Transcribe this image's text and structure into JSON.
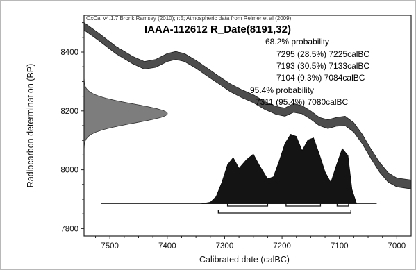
{
  "chart_data": {
    "type": "area",
    "title": "IAAA-112612 R_Date(8191,32)",
    "credit": "OxCal v4.1.7 Bronk Ramsey (2010); r:5; Atmospheric data from Reimer et al (2009);",
    "xlabel": "Calibrated date (calBC)",
    "ylabel": "Radiocarbon determination (BP)",
    "xlim": [
      7545,
      6975
    ],
    "ylim": [
      7775,
      8525
    ],
    "x_ticks": [
      7500,
      7400,
      7300,
      7200,
      7100,
      7000
    ],
    "y_ticks": [
      7800,
      8000,
      8200,
      8400
    ],
    "annotations": [
      "68.2% probability",
      "7295 (28.5%) 7225calBC",
      "7193 (30.5%) 7133calBC",
      "7104 (9.3%) 7084calBC",
      "95.4% probability",
      "7311 (95.4%) 7080calBC"
    ],
    "radiocarbon_date": {
      "mean": 8191,
      "sd": 32
    },
    "calibration_curve": [
      [
        7545,
        8500,
        8475
      ],
      [
        7520,
        8465,
        8440
      ],
      [
        7490,
        8420,
        8395
      ],
      [
        7460,
        8385,
        8360
      ],
      [
        7440,
        8368,
        8342
      ],
      [
        7420,
        8375,
        8348
      ],
      [
        7400,
        8395,
        8368
      ],
      [
        7385,
        8402,
        8375
      ],
      [
        7370,
        8395,
        8368
      ],
      [
        7350,
        8372,
        8345
      ],
      [
        7330,
        8345,
        8318
      ],
      [
        7310,
        8318,
        8292
      ],
      [
        7290,
        8292,
        8265
      ],
      [
        7270,
        8272,
        8245
      ],
      [
        7250,
        8255,
        8228
      ],
      [
        7230,
        8232,
        8205
      ],
      [
        7210,
        8215,
        8188
      ],
      [
        7195,
        8210,
        8182
      ],
      [
        7180,
        8225,
        8195
      ],
      [
        7165,
        8218,
        8190
      ],
      [
        7150,
        8200,
        8172
      ],
      [
        7135,
        8178,
        8150
      ],
      [
        7120,
        8170,
        8140
      ],
      [
        7105,
        8178,
        8148
      ],
      [
        7090,
        8182,
        8150
      ],
      [
        7075,
        8160,
        8128
      ],
      [
        7060,
        8120,
        8088
      ],
      [
        7045,
        8070,
        8038
      ],
      [
        7030,
        8025,
        7992
      ],
      [
        7015,
        7990,
        7958
      ],
      [
        7000,
        7972,
        7942
      ],
      [
        6975,
        7965,
        7935
      ]
    ],
    "posterior": [
      [
        7340,
        0.0
      ],
      [
        7325,
        0.02
      ],
      [
        7315,
        0.1
      ],
      [
        7305,
        0.3
      ],
      [
        7295,
        0.55
      ],
      [
        7285,
        0.65
      ],
      [
        7275,
        0.5
      ],
      [
        7262,
        0.62
      ],
      [
        7250,
        0.7
      ],
      [
        7240,
        0.55
      ],
      [
        7225,
        0.35
      ],
      [
        7215,
        0.38
      ],
      [
        7205,
        0.6
      ],
      [
        7195,
        0.85
      ],
      [
        7185,
        0.98
      ],
      [
        7175,
        0.95
      ],
      [
        7165,
        0.75
      ],
      [
        7155,
        0.9
      ],
      [
        7145,
        0.93
      ],
      [
        7135,
        0.7
      ],
      [
        7125,
        0.45
      ],
      [
        7115,
        0.3
      ],
      [
        7105,
        0.55
      ],
      [
        7095,
        0.78
      ],
      [
        7085,
        0.68
      ],
      [
        7078,
        0.2
      ],
      [
        7070,
        0.0
      ]
    ],
    "ranges_68": [
      [
        7295,
        7225
      ],
      [
        7193,
        7133
      ],
      [
        7104,
        7084
      ]
    ],
    "ranges_95": [
      [
        7311,
        7080
      ]
    ],
    "grid": false
  }
}
